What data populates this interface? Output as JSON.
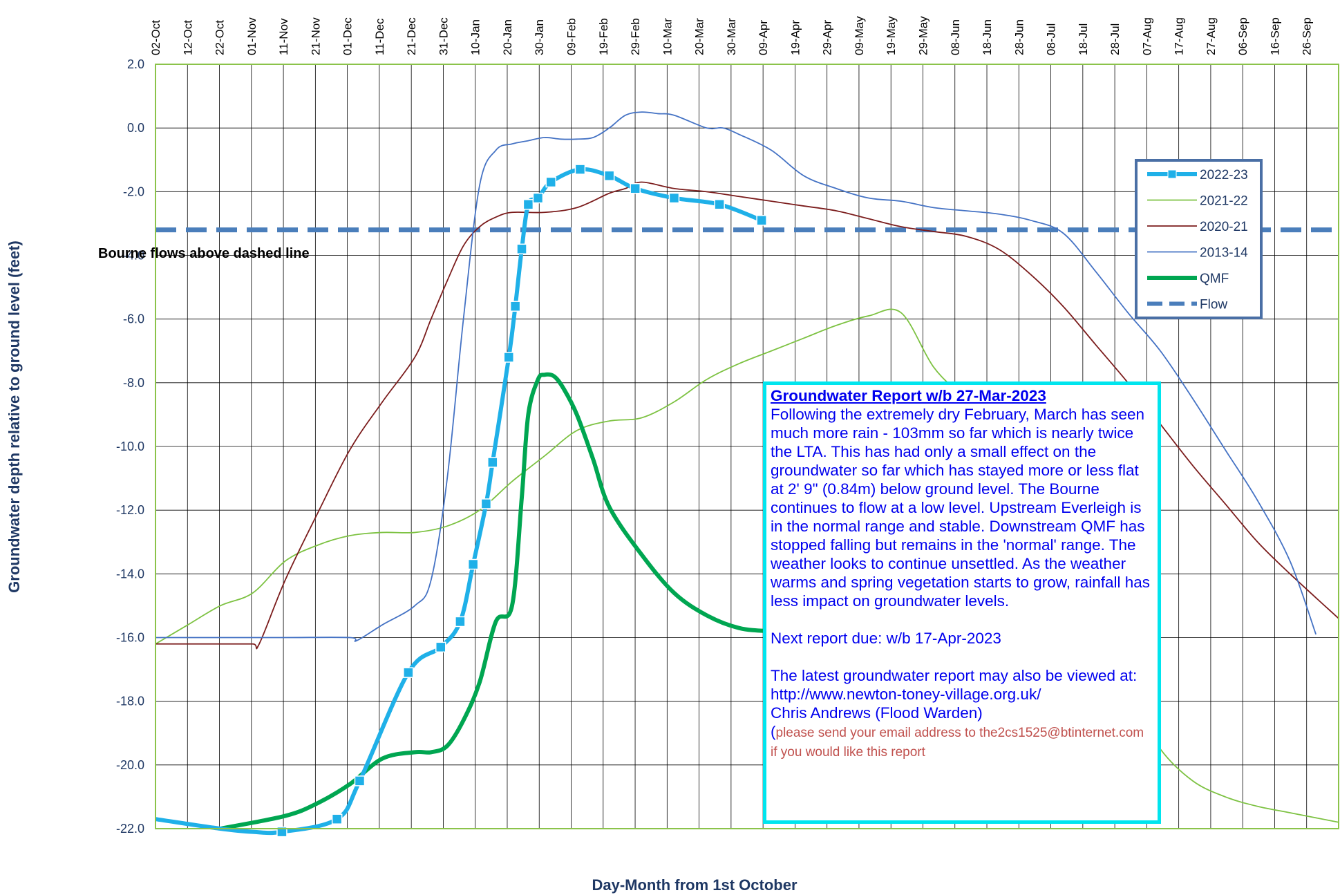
{
  "chart_data": {
    "type": "line",
    "xlabel": "Day-Month from 1st October",
    "ylabel": "Groundwater depth relative to ground level (feet)",
    "ylim": [
      -22,
      2
    ],
    "yticks": [
      "2.0",
      "0.0",
      "-2.0",
      "-4.0",
      "-6.0",
      "-8.0",
      "-10.0",
      "-12.0",
      "-14.0",
      "-16.0",
      "-18.0",
      "-20.0",
      "-22.0"
    ],
    "xlim": [
      0,
      365
    ],
    "xticks": [
      "02-Oct",
      "12-Oct",
      "22-Oct",
      "01-Nov",
      "11-Nov",
      "21-Nov",
      "01-Dec",
      "11-Dec",
      "21-Dec",
      "31-Dec",
      "10-Jan",
      "20-Jan",
      "30-Jan",
      "09-Feb",
      "19-Feb",
      "29-Feb",
      "10-Mar",
      "20-Mar",
      "30-Mar",
      "09-Apr",
      "19-Apr",
      "29-Apr",
      "09-May",
      "19-May",
      "29-May",
      "08-Jun",
      "18-Jun",
      "28-Jun",
      "08-Jul",
      "18-Jul",
      "28-Jul",
      "07-Aug",
      "17-Aug",
      "27-Aug",
      "06-Sep",
      "16-Sep",
      "26-Sep"
    ],
    "grid": true,
    "legend_position": "top-right",
    "annotation": "Bourne flows above dashed line",
    "series": [
      {
        "name": "2022-23",
        "color": "#1fb0e8",
        "markers": true,
        "x": [
          0,
          20,
          30,
          39,
          56,
          63,
          78,
          88,
          94,
          98,
          102,
          104,
          109,
          111,
          113,
          115,
          118,
          122,
          131,
          140,
          148,
          160,
          174,
          187
        ],
        "y": [
          -21.7,
          -22.0,
          -22.1,
          -22.1,
          -21.7,
          -20.5,
          -17.1,
          -16.3,
          -15.5,
          -13.7,
          -11.8,
          -10.5,
          -7.2,
          -5.6,
          -3.8,
          -2.4,
          -2.2,
          -1.7,
          -1.3,
          -1.5,
          -1.9,
          -2.2,
          -2.4,
          -2.9
        ]
      },
      {
        "name": "2021-22",
        "color": "#7dc242",
        "x": [
          0,
          10,
          20,
          30,
          40,
          50,
          60,
          70,
          80,
          90,
          100,
          110,
          120,
          130,
          140,
          150,
          160,
          170,
          180,
          190,
          200,
          210,
          220,
          230,
          240,
          250,
          260,
          270,
          280,
          290,
          300,
          310,
          320,
          330,
          340,
          350,
          365
        ],
        "y": [
          -16.2,
          -15.6,
          -15.0,
          -14.6,
          -13.6,
          -13.1,
          -12.8,
          -12.7,
          -12.7,
          -12.5,
          -12.0,
          -11.1,
          -10.3,
          -9.5,
          -9.2,
          -9.1,
          -8.6,
          -7.9,
          -7.4,
          -7.0,
          -6.6,
          -6.2,
          -5.9,
          -5.8,
          -7.5,
          -8.6,
          -10.2,
          -12.0,
          -14.0,
          -16.0,
          -17.8,
          -19.5,
          -20.5,
          -21.0,
          -21.3,
          -21.5,
          -21.8
        ]
      },
      {
        "name": "2020-21",
        "color": "#7b1c1c",
        "x": [
          0,
          10,
          20,
          30,
          32,
          40,
          50,
          60,
          70,
          80,
          85,
          90,
          95,
          100,
          105,
          110,
          120,
          130,
          140,
          145,
          150,
          160,
          170,
          180,
          190,
          200,
          210,
          220,
          230,
          240,
          250,
          260,
          270,
          280,
          290,
          300,
          310,
          320,
          330,
          340,
          350,
          365
        ],
        "y": [
          -16.2,
          -16.2,
          -16.2,
          -16.2,
          -16.2,
          -14.2,
          -12.1,
          -10.1,
          -8.6,
          -7.2,
          -6.0,
          -4.8,
          -3.7,
          -3.1,
          -2.8,
          -2.65,
          -2.65,
          -2.5,
          -2.05,
          -1.9,
          -1.7,
          -1.9,
          -2.0,
          -2.15,
          -2.3,
          -2.45,
          -2.6,
          -2.85,
          -3.1,
          -3.25,
          -3.4,
          -3.8,
          -4.6,
          -5.6,
          -6.8,
          -8.0,
          -9.3,
          -10.6,
          -11.8,
          -13.0,
          -14.0,
          -15.4
        ]
      },
      {
        "name": "2013-14",
        "color": "#4472c4",
        "x": [
          0,
          20,
          40,
          60,
          62,
          70,
          80,
          85,
          90,
          95,
          100,
          105,
          110,
          115,
          120,
          125,
          130,
          135,
          140,
          145,
          150,
          155,
          160,
          170,
          175,
          180,
          190,
          200,
          210,
          220,
          230,
          240,
          250,
          260,
          270,
          280,
          290,
          300,
          310,
          320,
          330,
          340,
          350,
          358
        ],
        "y": [
          -16.0,
          -16.0,
          -16.0,
          -16.0,
          -16.1,
          -15.6,
          -15.0,
          -14.2,
          -11.0,
          -6.0,
          -1.8,
          -0.7,
          -0.5,
          -0.4,
          -0.3,
          -0.35,
          -0.35,
          -0.3,
          0.0,
          0.4,
          0.5,
          0.45,
          0.4,
          0.0,
          0.0,
          -0.2,
          -0.7,
          -1.5,
          -1.9,
          -2.2,
          -2.3,
          -2.5,
          -2.6,
          -2.7,
          -2.9,
          -3.3,
          -4.5,
          -5.8,
          -7.0,
          -8.5,
          -10.1,
          -11.7,
          -13.6,
          -15.9
        ]
      },
      {
        "name": "QMF",
        "color": "#00a651",
        "x": [
          20,
          40,
          50,
          60,
          70,
          80,
          85,
          90,
          95,
          100,
          105,
          110,
          113,
          115,
          118,
          120,
          123,
          126,
          130,
          135,
          140,
          150,
          160,
          170,
          180,
          190,
          198,
          208,
          220
        ],
        "y": [
          -22.0,
          -21.6,
          -21.2,
          -20.6,
          -19.8,
          -19.6,
          -19.6,
          -19.4,
          -18.6,
          -17.4,
          -15.5,
          -15.0,
          -11.6,
          -9.0,
          -7.9,
          -7.75,
          -7.8,
          -8.2,
          -9.0,
          -10.4,
          -11.9,
          -13.4,
          -14.6,
          -15.3,
          -15.7,
          -15.8,
          -15.8,
          -15.75,
          -15.75
        ]
      },
      {
        "name": "Flow",
        "color": "#4a7ebb",
        "dashed": true,
        "x": [
          0,
          365
        ],
        "y": [
          -3.2,
          -3.2
        ]
      }
    ]
  },
  "report": {
    "title": "Groundwater Report w/b 27-Mar-2023",
    "body": "Following the extremely dry February, March  has seen much more rain - 103mm so far which is nearly twice the LTA. This has had only a small effect on the groundwater so far which has stayed more or less flat at 2' 9\" (0.84m) below ground level. The Bourne continues to flow at a low level. Upstream Everleigh is in the normal range and stable. Downstream QMF has stopped falling but remains in the 'normal' range. The weather looks to continue unsettled. As the weather warms and spring vegetation starts to grow, rainfall has less impact on groundwater levels.",
    "next": "Next report due: w/b 17-Apr-2023",
    "latest": "The latest groundwater report may also be viewed at: http://www.newton-toney-village.org.uk/",
    "author": "Chris Andrews (Flood Warden)",
    "paren": "(",
    "email": "please send your email address to the2cs1525@btinternet.com if you would like this report"
  }
}
